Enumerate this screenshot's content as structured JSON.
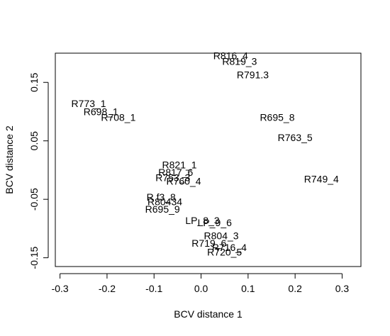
{
  "chart_data": {
    "type": "scatter",
    "title": "",
    "xlabel": "BCV distance 1",
    "ylabel": "BCV distance 2",
    "xlim": [
      -0.31,
      0.34
    ],
    "ylim": [
      -0.165,
      0.2
    ],
    "xticks": [
      -0.3,
      -0.2,
      -0.1,
      0.0,
      0.1,
      0.2,
      0.3
    ],
    "xtick_labels": [
      "-0.3",
      "-0.2",
      "-0.1",
      "0.0",
      "0.1",
      "0.2",
      "0.3"
    ],
    "yticks": [
      -0.15,
      -0.05,
      0.05,
      0.15
    ],
    "ytick_labels": [
      "-0.15",
      "-0.05",
      "0.05",
      "0.15"
    ],
    "grid": false,
    "points": [
      {
        "label": "R816_4",
        "x": 0.063,
        "y": 0.196
      },
      {
        "label": "R819_3",
        "x": 0.082,
        "y": 0.186
      },
      {
        "label": "R791.3",
        "x": 0.11,
        "y": 0.163
      },
      {
        "label": "R773_1",
        "x": -0.239,
        "y": 0.114
      },
      {
        "label": "R698_1",
        "x": -0.213,
        "y": 0.1
      },
      {
        "label": "R708_1",
        "x": -0.176,
        "y": 0.09
      },
      {
        "label": "R695_8",
        "x": 0.162,
        "y": 0.09
      },
      {
        "label": "R763_5",
        "x": 0.2,
        "y": 0.056
      },
      {
        "label": "R821_1",
        "x": -0.046,
        "y": 0.009
      },
      {
        "label": "R817_6",
        "x": -0.054,
        "y": -0.004
      },
      {
        "label": "R753_3",
        "x": -0.06,
        "y": -0.013
      },
      {
        "label": "R760_4",
        "x": -0.037,
        "y": -0.019
      },
      {
        "label": "R749_4",
        "x": 0.256,
        "y": -0.015
      },
      {
        "label": "R f3_8",
        "x": -0.085,
        "y": -0.046
      },
      {
        "label": "R80434",
        "x": -0.077,
        "y": -0.054
      },
      {
        "label": "R695_9",
        "x": -0.082,
        "y": -0.067
      },
      {
        "label": "LP_8_3",
        "x": 0.003,
        "y": -0.086
      },
      {
        "label": "LP_9_6",
        "x": 0.029,
        "y": -0.09
      },
      {
        "label": "R804_3",
        "x": 0.043,
        "y": -0.112
      },
      {
        "label": "R719_6",
        "x": 0.017,
        "y": -0.125
      },
      {
        "label": "R716_4",
        "x": 0.06,
        "y": -0.132
      },
      {
        "label": "R720_5",
        "x": 0.05,
        "y": -0.14
      }
    ]
  }
}
